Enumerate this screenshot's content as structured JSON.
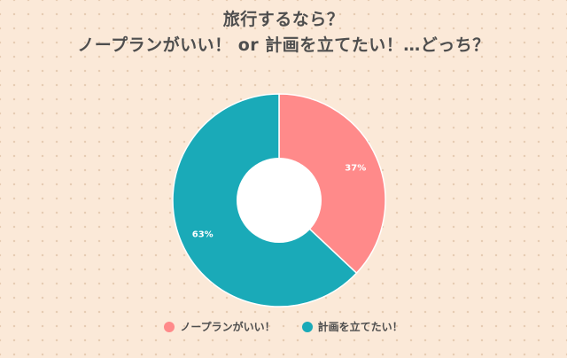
{
  "chart_data": {
    "type": "pie",
    "donut": true,
    "title": [
      "旅行するなら？",
      "ノープランがいい！ or 計画を立てたい！…どっち？"
    ],
    "categories": [
      "ノープランがいい！",
      "計画を立てたい！"
    ],
    "values": [
      37,
      63
    ],
    "data_labels": [
      "37%",
      "63%"
    ],
    "colors": [
      "#ff8a8a",
      "#1aaab8"
    ],
    "legend_position": "bottom-center",
    "start_angle_deg": 0,
    "direction": "clockwise"
  },
  "colors": {
    "background": "#fbe9d8",
    "hole": "#ffffff",
    "title_text": "#4e4e4e"
  }
}
